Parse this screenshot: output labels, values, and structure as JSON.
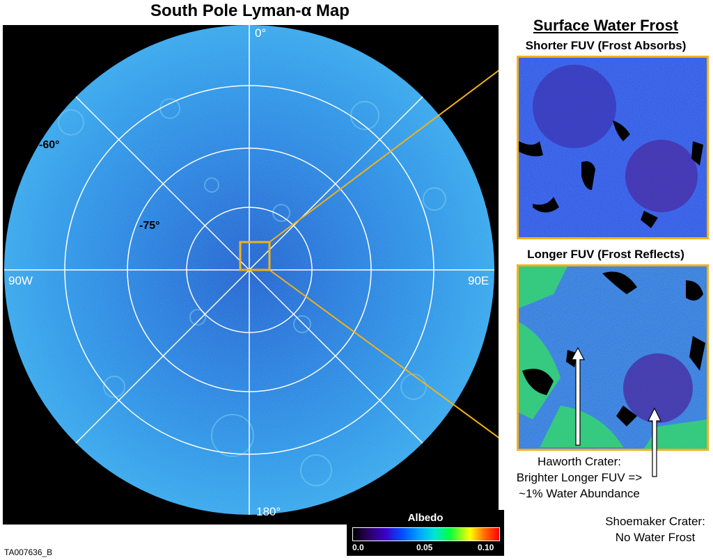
{
  "main_title": "South Pole Lyman-α Map",
  "map": {
    "latitude_labels": [
      "-60°",
      "-75°"
    ],
    "longitude_labels": {
      "top": "0°",
      "left": "90W",
      "right": "90E",
      "bottom": "180°"
    }
  },
  "right_panel": {
    "title": "Surface Water Frost",
    "top_inset_title": "Shorter FUV (Frost Absorbs)",
    "bottom_inset_title": "Longer FUV (Frost Reflects)"
  },
  "annotations": {
    "haworth": [
      "Haworth Crater:",
      "Brighter Longer FUV =>",
      "~1% Water Abundance"
    ],
    "shoemaker": [
      "Shoemaker Crater:",
      "No Water Frost"
    ]
  },
  "colorbar": {
    "title": "Albedo",
    "ticks": [
      "0.0",
      "0.05",
      "0.10"
    ]
  },
  "figure_id": "TA007636_B",
  "colors": {
    "map_fill": "#2c8fe0",
    "grid": "#ffffff",
    "callout": "#f2b21a",
    "inset_blue": "#1f48e0"
  }
}
